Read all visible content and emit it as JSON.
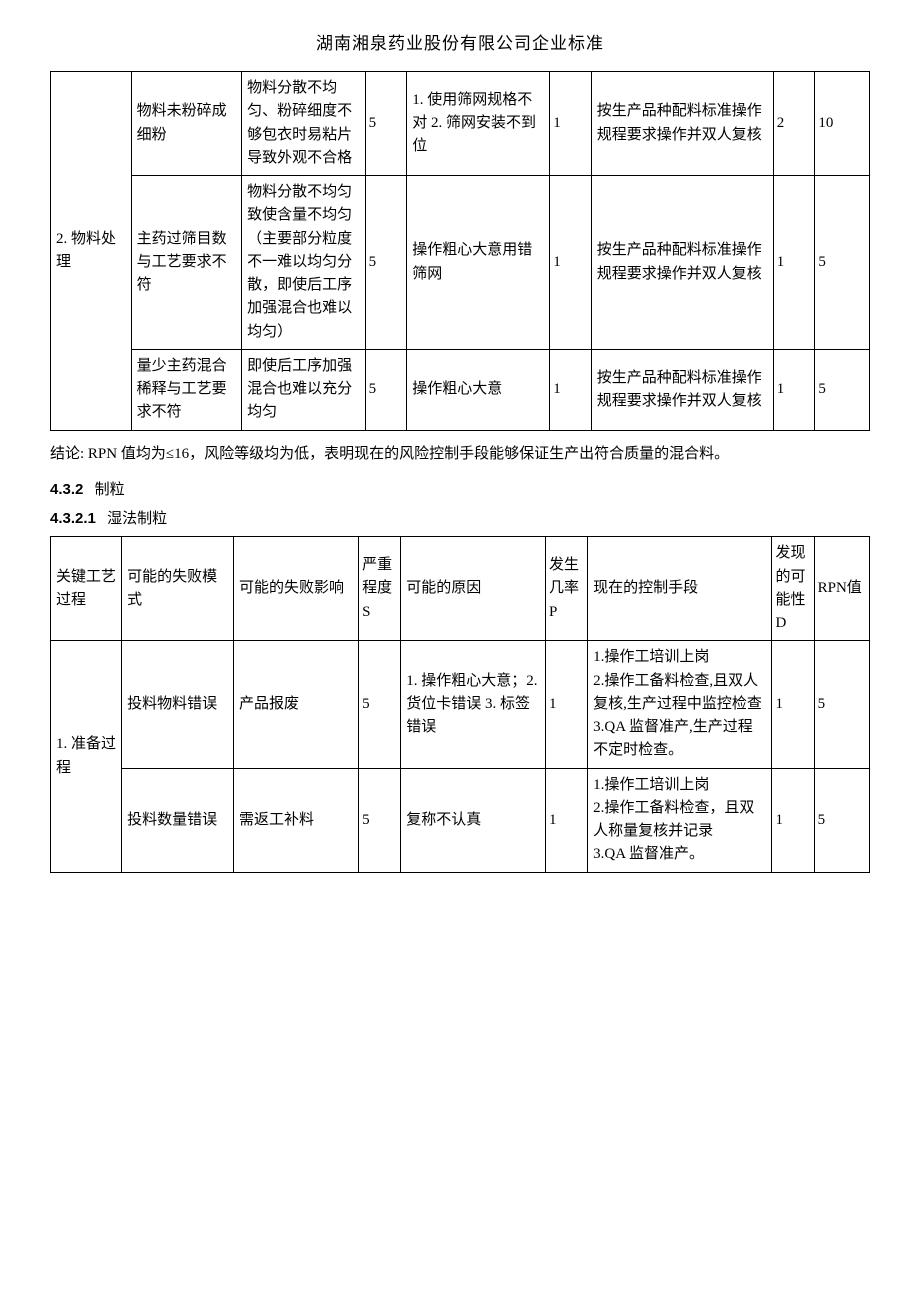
{
  "header": "湖南湘泉药业股份有限公司企业标准",
  "table1": {
    "process": "2. 物料处理",
    "rows": [
      {
        "mode": "物料未粉碎成细粉",
        "effect": "物料分散不均匀、粉碎细度不够包衣时易粘片导致外观不合格",
        "s": "5",
        "cause": "1. 使用筛网规格不对 2. 筛网安装不到位",
        "p": "1",
        "control": "按生产品种配料标准操作规程要求操作并双人复核",
        "d": "2",
        "rpn": "10"
      },
      {
        "mode": "主药过筛目数与工艺要求不符",
        "effect": "物料分散不均匀致使含量不均匀（主要部分粒度不一难以均匀分散，即使后工序加强混合也难以均匀）",
        "s": "5",
        "cause": "操作粗心大意用错筛网",
        "p": "1",
        "control": "按生产品种配料标准操作规程要求操作并双人复核",
        "d": "1",
        "rpn": "5"
      },
      {
        "mode": "量少主药混合稀释与工艺要求不符",
        "effect": "即使后工序加强混合也难以充分均匀",
        "s": "5",
        "cause": "操作粗心大意",
        "p": "1",
        "control": "按生产品种配料标准操作规程要求操作并双人复核",
        "d": "1",
        "rpn": "5"
      }
    ]
  },
  "conclusion": "结论: RPN 值均为≤16，风险等级均为低，表明现在的风险控制手段能够保证生产出符合质量的混合料。",
  "sec432_num": "4.3.2",
  "sec432_text": "制粒",
  "sec4321_num": "4.3.2.1",
  "sec4321_text": "湿法制粒",
  "table2": {
    "headers": {
      "process": "关键工艺过程",
      "mode": "可能的失败模式",
      "effect": "可能的失败影响",
      "s": "严重程度S",
      "cause": "可能的原因",
      "p": "发生几率P",
      "control": "现在的控制手段",
      "d": "发现的可能性D",
      "rpn": "RPN值"
    },
    "process": "1. 准备过程",
    "rows": [
      {
        "mode": "投料物料错误",
        "effect": "产品报废",
        "s": "5",
        "cause": "1. 操作粗心大意；2. 货位卡错误 3. 标签错误",
        "p": "1",
        "control": "1.操作工培训上岗\n2.操作工备料检查,且双人复核,生产过程中监控检查\n3.QA 监督准产,生产过程不定时检查。",
        "d": "1",
        "rpn": "5"
      },
      {
        "mode": "投料数量错误",
        "effect": "需返工补料",
        "s": "5",
        "cause": "复称不认真",
        "p": "1",
        "control": "1.操作工培训上岗\n2.操作工备料检查，且双人称量复核并记录\n3.QA 监督准产。",
        "d": "1",
        "rpn": "5"
      }
    ]
  }
}
